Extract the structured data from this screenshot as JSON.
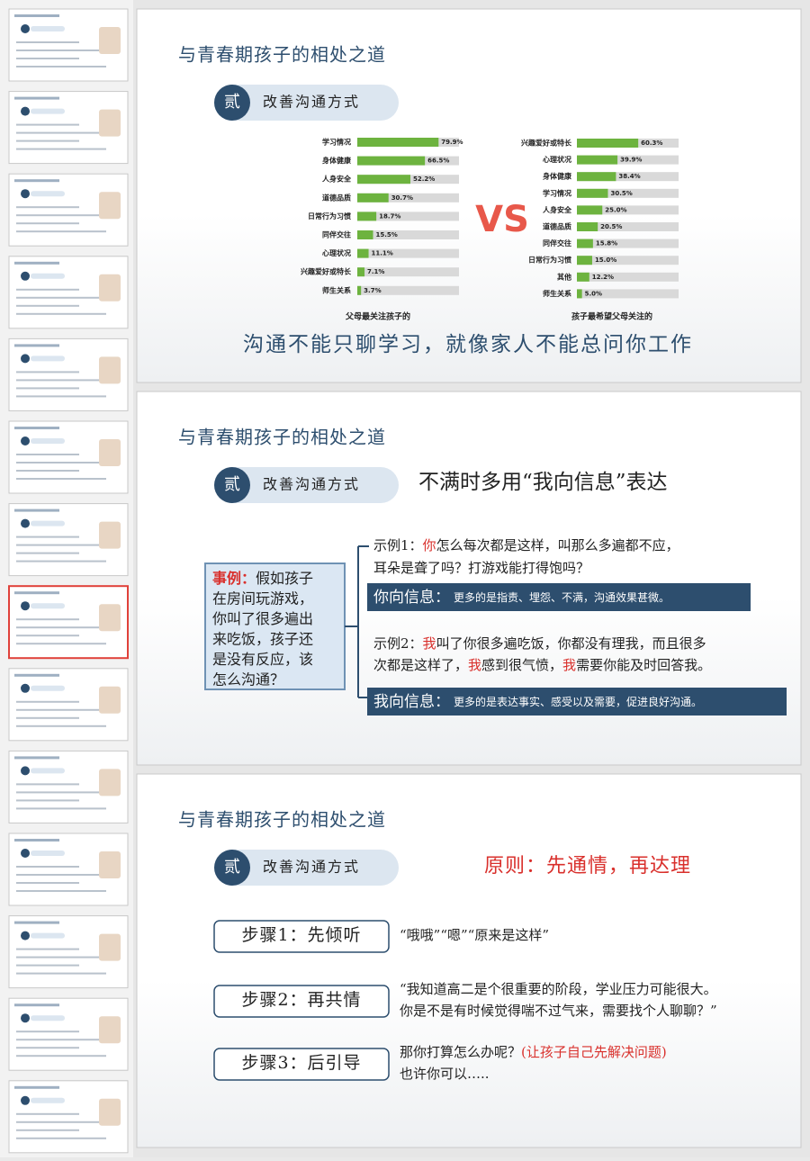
{
  "slides": [
    {
      "title": "与青春期孩子的相处之道",
      "section_number": "贰",
      "section": "改善沟通方式",
      "chart_data": [
        {
          "type": "bar",
          "caption": "父母最关注孩子的",
          "categories": [
            "学习情况",
            "身体健康",
            "人身安全",
            "道德品质",
            "日常行为习惯",
            "同伴交往",
            "心理状况",
            "兴趣爱好或特长",
            "师生关系"
          ],
          "values": [
            79.9,
            66.5,
            52.2,
            30.7,
            18.7,
            15.5,
            11.1,
            7.1,
            3.7
          ],
          "value_labels": [
            "79.9%",
            "66.5%",
            "52.2%",
            "30.7%",
            "18.7%",
            "15.5%",
            "11.1%",
            "7.1%",
            "3.7%"
          ],
          "color": "#6db33f",
          "track_color": "#d9d9d9",
          "xlim": [
            0,
            100
          ]
        },
        {
          "type": "bar",
          "caption": "孩子最希望父母关注的",
          "categories": [
            "兴趣爱好或特长",
            "心理状况",
            "身体健康",
            "学习情况",
            "人身安全",
            "道德品质",
            "同伴交往",
            "日常行为习惯",
            "其他",
            "师生关系"
          ],
          "values": [
            60.3,
            39.9,
            38.4,
            30.5,
            25.0,
            20.5,
            15.8,
            15.0,
            12.2,
            5.0
          ],
          "value_labels": [
            "60.3%",
            "39.9%",
            "38.4%",
            "30.5%",
            "25.0%",
            "20.5%",
            "15.8%",
            "15.0%",
            "12.2%",
            "5.0%"
          ],
          "color": "#6db33f",
          "track_color": "#d9d9d9",
          "xlim": [
            0,
            100
          ]
        }
      ],
      "vs": "VS",
      "slogan": "沟通不能只聊学习，就像家人不能总问你工作"
    },
    {
      "title": "与青春期孩子的相处之道",
      "section_number": "贰",
      "section": "改善沟通方式",
      "heading": "不满时多用“我向信息”表达",
      "case_label": "事例：",
      "case_lines": [
        "假如孩子",
        "在房间玩游戏，",
        "你叫了很多遍出",
        "来吃饭，孩子还",
        "是没有反应，该",
        "怎么沟通？"
      ],
      "example1": [
        [
          {
            "text": "示例1："
          },
          {
            "text": "你",
            "color": "#d9302c"
          },
          {
            "text": "怎么每次都是这样，叫那么多遍都不应，"
          }
        ],
        [
          {
            "text": "耳朵是聋了吗？打游戏能打得饱吗？"
          }
        ]
      ],
      "info1": {
        "label": "你向信息：",
        "text": "更多的是指责、埋怨、不满，沟通效果甚微。"
      },
      "example2": [
        [
          {
            "text": "示例2："
          },
          {
            "text": "我",
            "color": "#d9302c"
          },
          {
            "text": "叫了你很多遍吃饭，你都没有理我，而且很多"
          }
        ],
        [
          {
            "text": "次都是这样了，"
          },
          {
            "text": "我",
            "color": "#d9302c"
          },
          {
            "text": "感到很气愤，"
          },
          {
            "text": "我",
            "color": "#d9302c"
          },
          {
            "text": "需要你能及时回答我。"
          }
        ]
      ],
      "info2": {
        "label": "我向信息：",
        "text": "更多的是表达事实、感受以及需要，促进良好沟通。"
      }
    },
    {
      "title": "与青春期孩子的相处之道",
      "section_number": "贰",
      "section": "改善沟通方式",
      "principle": "原则：先通情，再达理",
      "steps": [
        {
          "label": "步骤1：先倾听",
          "lines": [
            [
              {
                "text": "“哦哦”“嗯”“原来是这样”"
              }
            ]
          ]
        },
        {
          "label": "步骤2：再共情",
          "lines": [
            [
              {
                "text": "“我知道高二是个很重要的阶段，学业压力可能很大。"
              }
            ],
            [
              {
                "text": "你是不是有时候觉得喘不过气来，需要找个人聊聊？”"
              }
            ]
          ]
        },
        {
          "label": "步骤3：后引导",
          "lines": [
            [
              {
                "text": "那你打算怎么办呢？"
              },
              {
                "text": "(让孩子自己先解决问题)",
                "color": "#d9302c"
              }
            ],
            [
              {
                "text": "也许你可以….."
              }
            ]
          ]
        }
      ]
    }
  ]
}
